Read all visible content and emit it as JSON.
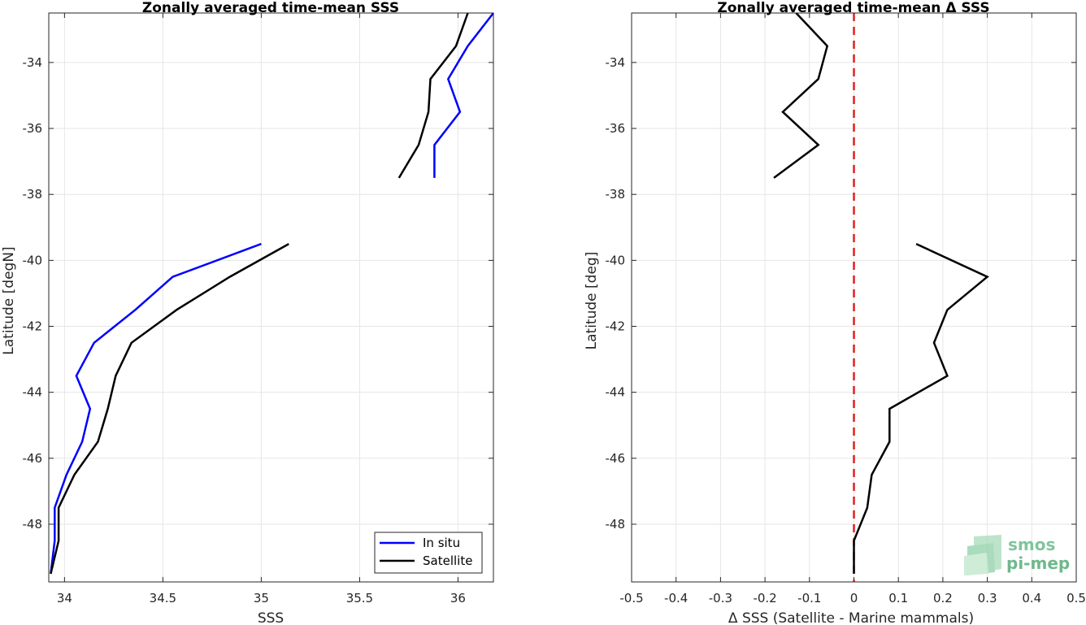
{
  "chart_data": [
    {
      "type": "line",
      "title": "Zonally averaged time-mean SSS",
      "xlabel": "SSS",
      "ylabel": "Latitude [degN]",
      "xlim": [
        33.92,
        36.18
      ],
      "ylim": [
        -49.75,
        -32.5
      ],
      "xticks": [
        34,
        34.5,
        35,
        35.5,
        36
      ],
      "xtick_labels": [
        "34",
        "34.5",
        "35",
        "35.5",
        "36"
      ],
      "yticks": [
        -48,
        -46,
        -44,
        -42,
        -40,
        -38,
        -36,
        -34
      ],
      "ytick_labels": [
        "-48",
        "-46",
        "-44",
        "-42",
        "-40",
        "-38",
        "-36",
        "-34"
      ],
      "grid": true,
      "legend_location": "bottom-right",
      "series": [
        {
          "name": "In situ",
          "color": "#0000ff",
          "segments": [
            [
              [
                36.18,
                -32.5
              ],
              [
                36.05,
                -33.5
              ],
              [
                35.95,
                -34.5
              ],
              [
                36.01,
                -35.5
              ],
              [
                35.88,
                -36.5
              ],
              [
                35.88,
                -37.5
              ]
            ],
            [
              [
                35.0,
                -39.5
              ],
              [
                34.55,
                -40.5
              ],
              [
                34.36,
                -41.5
              ],
              [
                34.15,
                -42.5
              ],
              [
                34.06,
                -43.5
              ],
              [
                34.13,
                -44.5
              ],
              [
                34.09,
                -45.5
              ],
              [
                34.01,
                -46.5
              ],
              [
                33.95,
                -47.5
              ],
              [
                33.95,
                -48.5
              ],
              [
                33.93,
                -49.5
              ]
            ]
          ]
        },
        {
          "name": "Satellite",
          "color": "#000000",
          "segments": [
            [
              [
                36.05,
                -32.5
              ],
              [
                35.99,
                -33.5
              ],
              [
                35.86,
                -34.5
              ],
              [
                35.85,
                -35.5
              ],
              [
                35.8,
                -36.5
              ],
              [
                35.7,
                -37.5
              ]
            ],
            [
              [
                35.14,
                -39.5
              ],
              [
                34.84,
                -40.5
              ],
              [
                34.57,
                -41.5
              ],
              [
                34.34,
                -42.5
              ],
              [
                34.26,
                -43.5
              ],
              [
                34.22,
                -44.5
              ],
              [
                34.17,
                -45.5
              ],
              [
                34.05,
                -46.5
              ],
              [
                33.97,
                -47.5
              ],
              [
                33.97,
                -48.5
              ],
              [
                33.93,
                -49.5
              ]
            ]
          ]
        }
      ]
    },
    {
      "type": "line",
      "title": "Zonally averaged time-mean Δ SSS",
      "xlabel": "Δ SSS (Satellite - Marine mammals)",
      "ylabel": "Latitude [deg]",
      "xlim": [
        -0.5,
        0.5
      ],
      "ylim": [
        -49.75,
        -32.5
      ],
      "xticks": [
        -0.5,
        -0.4,
        -0.3,
        -0.2,
        -0.1,
        0,
        0.1,
        0.2,
        0.3,
        0.4,
        0.5
      ],
      "xtick_labels": [
        "-0.5",
        "-0.4",
        "-0.3",
        "-0.2",
        "-0.1",
        "0",
        "0.1",
        "0.2",
        "0.3",
        "0.4",
        "0.5"
      ],
      "yticks": [
        -48,
        -46,
        -44,
        -42,
        -40,
        -38,
        -36,
        -34
      ],
      "ytick_labels": [
        "-48",
        "-46",
        "-44",
        "-42",
        "-40",
        "-38",
        "-36",
        "-34"
      ],
      "grid": true,
      "reference_line": {
        "x": 0,
        "color": "#e02020",
        "style": "dashed"
      },
      "series": [
        {
          "color": "#000000",
          "segments": [
            [
              [
                -0.13,
                -32.5
              ],
              [
                -0.06,
                -33.5
              ],
              [
                -0.08,
                -34.5
              ],
              [
                -0.16,
                -35.5
              ],
              [
                -0.08,
                -36.5
              ],
              [
                -0.18,
                -37.5
              ]
            ],
            [
              [
                0.14,
                -39.5
              ],
              [
                0.3,
                -40.5
              ],
              [
                0.21,
                -41.5
              ],
              [
                0.18,
                -42.5
              ],
              [
                0.21,
                -43.5
              ],
              [
                0.08,
                -44.5
              ],
              [
                0.08,
                -45.5
              ],
              [
                0.04,
                -46.5
              ],
              [
                0.03,
                -47.5
              ],
              [
                0.0,
                -48.5
              ],
              [
                0.0,
                -49.5
              ]
            ]
          ]
        }
      ]
    }
  ],
  "legend": {
    "entries": [
      "In situ",
      "Satellite"
    ]
  },
  "logo": {
    "line1": "smos",
    "line2": "pi-mep"
  }
}
